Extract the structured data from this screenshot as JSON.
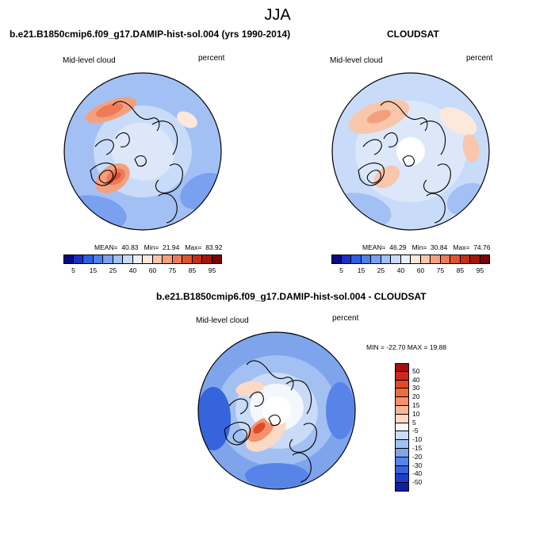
{
  "header": {
    "season": "JJA"
  },
  "panels": [
    {
      "id": "model",
      "title": "b.e21.B1850cmip6.f09_g17.DAMIP-hist-sol.004 (yrs 1990-2014)",
      "left_label": "Mid-level cloud",
      "right_label": "percent",
      "stats": {
        "mean_label": "MEAN=",
        "mean": "40.83",
        "min_label": "Min=",
        "min": "21.94",
        "max_label": "Max=",
        "max": "83.92"
      },
      "mean_value": 40.83
    },
    {
      "id": "obs",
      "title": "CLOUDSAT",
      "left_label": "Mid-level cloud",
      "right_label": "percent",
      "stats": {
        "mean_label": "MEAN=",
        "mean": "46.29",
        "min_label": "Min=",
        "min": "30.84",
        "max_label": "Max=",
        "max": "74.76"
      },
      "mean_value": 46.29,
      "polar_gap": true
    },
    {
      "id": "diff",
      "title": "b.e21.B1850cmip6.f09_g17.DAMIP-hist-sol.004 - CLOUDSAT",
      "left_label": "Mid-level cloud",
      "right_label": "percent",
      "minmax": "MIN = -22.70  MAX = 19.88",
      "polar_gap": true
    }
  ],
  "abs_colorbar": {
    "tick_labels": [
      "5",
      "15",
      "25",
      "40",
      "60",
      "75",
      "85",
      "95"
    ],
    "colors": [
      "#0a0a82",
      "#1a2fc8",
      "#2d5ee6",
      "#4f7fec",
      "#7aa0f0",
      "#a3c0f5",
      "#c8dbf8",
      "#e8f0fb",
      "#fde8dc",
      "#f9c6ab",
      "#f4a07f",
      "#ee7a57",
      "#e0532f",
      "#c63015",
      "#a2170a",
      "#780404"
    ]
  },
  "diff_colorbar": {
    "tick_labels": [
      "50",
      "40",
      "30",
      "20",
      "15",
      "10",
      "5",
      "-5",
      "-10",
      "-15",
      "-20",
      "-30",
      "-40",
      "-50"
    ],
    "colors": [
      "#a50f0f",
      "#cc2a1a",
      "#e24a27",
      "#f06a3c",
      "#f5916a",
      "#f7b699",
      "#fbd9c6",
      "#f4f7fb",
      "#c9dbf6",
      "#a2c0f1",
      "#7ea4ec",
      "#5784e6",
      "#3564dc",
      "#1f3ed0",
      "#0c1fa6"
    ]
  }
}
